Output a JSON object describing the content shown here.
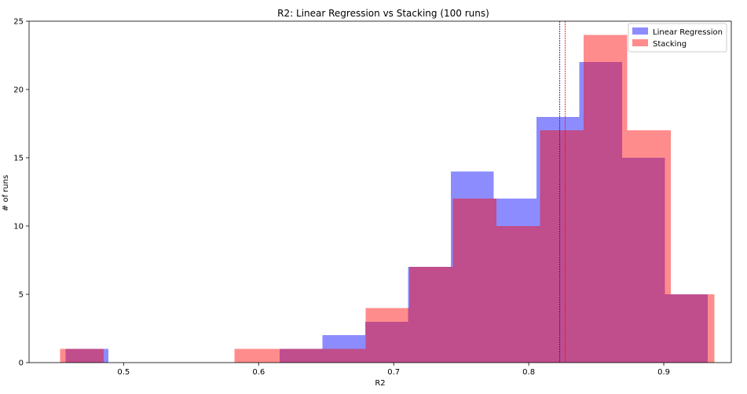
{
  "chart_data": {
    "type": "histogram",
    "title": "R2: Linear Regression vs Stacking (100 runs)",
    "xlabel": "R2",
    "ylabel": "# of runs",
    "xlim": [
      0.43,
      0.95
    ],
    "ylim": [
      0,
      25
    ],
    "x_ticks": [
      "0.5",
      "0.6",
      "0.7",
      "0.8",
      "0.9"
    ],
    "y_ticks": [
      "0",
      "5",
      "10",
      "15",
      "20",
      "25"
    ],
    "legend_position": "top-right",
    "series": [
      {
        "name": "Linear Regression",
        "color": "#0000ff",
        "alpha": 0.45,
        "bin_edges": [
          0.457,
          0.4887,
          0.5204,
          0.5521,
          0.5838,
          0.6155,
          0.6472,
          0.6789,
          0.7106,
          0.7423,
          0.774,
          0.8057,
          0.8374,
          0.8691,
          0.9008,
          0.9325
        ],
        "counts": [
          1,
          0,
          0,
          0,
          0,
          1,
          2,
          3,
          7,
          14,
          12,
          18,
          22,
          15,
          5
        ],
        "mean": 0.823
      },
      {
        "name": "Stacking",
        "color": "#ff0000",
        "alpha": 0.45,
        "bin_edges": [
          0.453,
          0.4853,
          0.5176,
          0.5499,
          0.5822,
          0.6145,
          0.6468,
          0.6791,
          0.7114,
          0.7437,
          0.776,
          0.8083,
          0.8406,
          0.8729,
          0.9052,
          0.9375
        ],
        "counts": [
          1,
          0,
          0,
          0,
          1,
          1,
          1,
          4,
          7,
          12,
          10,
          17,
          24,
          17,
          5
        ],
        "mean": 0.827
      }
    ]
  }
}
